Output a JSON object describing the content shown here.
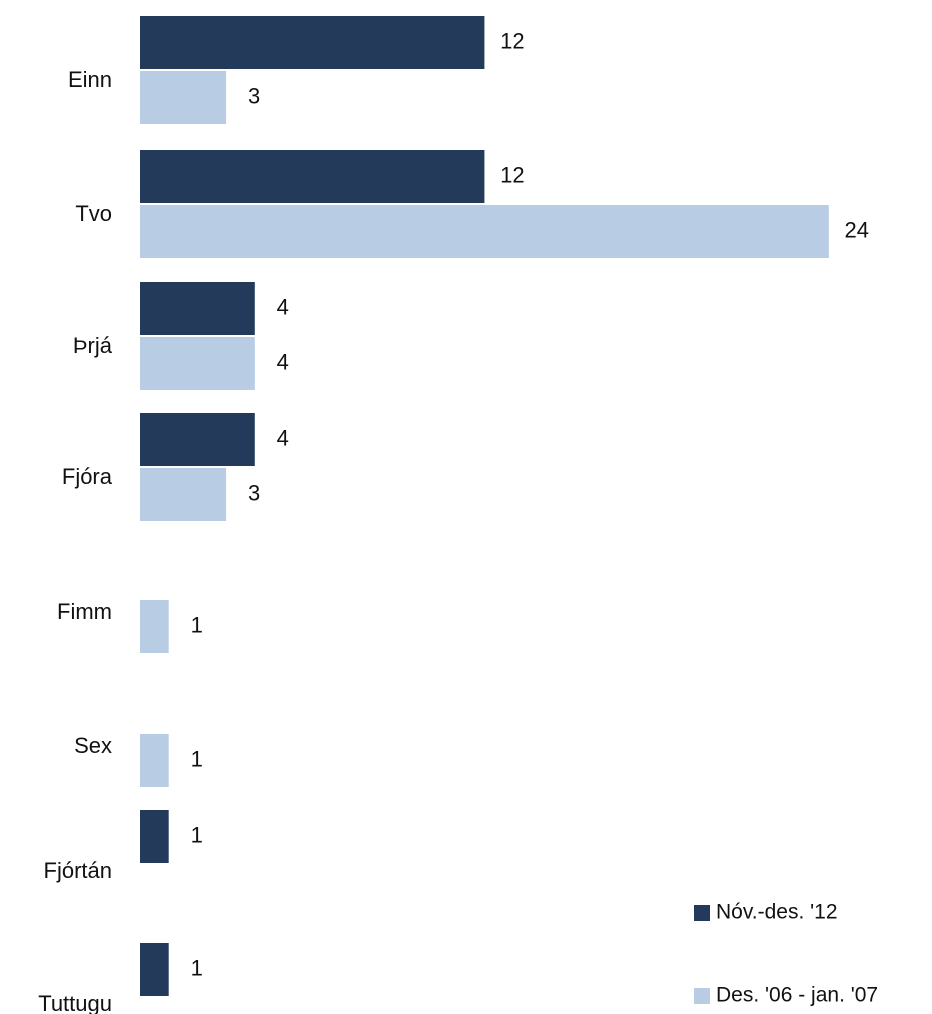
{
  "chart_data": {
    "type": "bar",
    "orientation": "horizontal",
    "categories": [
      "Einn",
      "Tvo",
      "Þrjá",
      "Fjóra",
      "Fimm",
      "Sex",
      "Fjórtán",
      "Tuttugu"
    ],
    "series": [
      {
        "name": "Nóv.-des. '12",
        "color": "#243a5a",
        "values": [
          12,
          12,
          4,
          4,
          null,
          null,
          1,
          1
        ]
      },
      {
        "name": "Des. '06 - jan. '07",
        "color": "#b8cce4",
        "values": [
          3,
          24,
          4,
          3,
          1,
          1,
          null,
          null
        ]
      }
    ],
    "data_labels": true,
    "grid": false,
    "axis_lines": false,
    "xlim": [
      0,
      24
    ],
    "legend_position": "bottom-right"
  },
  "legend": {
    "items": [
      {
        "label": "Nóv.-des. '12",
        "color": "#243a5a"
      },
      {
        "label": "Des. '06 - jan. '07",
        "color": "#b8cce4"
      }
    ]
  }
}
